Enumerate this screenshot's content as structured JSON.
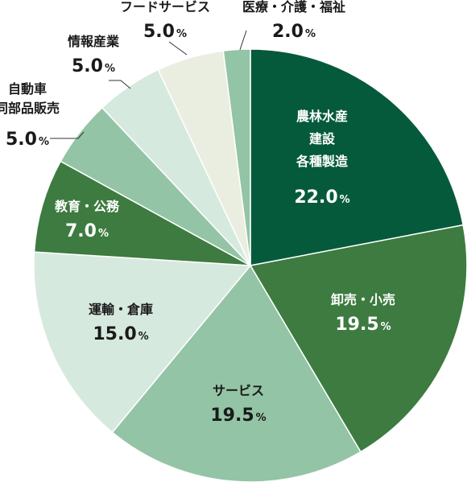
{
  "chart_data": {
    "type": "pie",
    "start_angle_deg": 0,
    "direction": "clockwise",
    "slices": [
      {
        "label_lines": [
          "農林水産",
          "建設",
          "各種製造"
        ],
        "value": 22.0,
        "value_text": "22.0",
        "unit": "%",
        "color": "#065a3c",
        "text_color": "#ffffff",
        "label_inside": true
      },
      {
        "label_lines": [
          "卸売・小売"
        ],
        "value": 19.5,
        "value_text": "19.5",
        "unit": "%",
        "color": "#3d7b40",
        "text_color": "#ffffff",
        "label_inside": true
      },
      {
        "label_lines": [
          "サービス"
        ],
        "value": 19.5,
        "value_text": "19.5",
        "unit": "%",
        "color": "#93c4a5",
        "text_color": "#1a1a1a",
        "label_inside": true
      },
      {
        "label_lines": [
          "運輸・倉庫"
        ],
        "value": 15.0,
        "value_text": "15.0",
        "unit": "%",
        "color": "#d6e9df",
        "text_color": "#1a1a1a",
        "label_inside": true
      },
      {
        "label_lines": [
          "教育・公務"
        ],
        "value": 7.0,
        "value_text": "7.0",
        "unit": "%",
        "color": "#3d7b40",
        "text_color": "#ffffff",
        "label_inside": true
      },
      {
        "label_lines": [
          "自動車",
          "同部品販売"
        ],
        "value": 5.0,
        "value_text": "5.0",
        "unit": "%",
        "color": "#93c4a5",
        "text_color": "#1a1a1a",
        "label_inside": false
      },
      {
        "label_lines": [
          "情報産業"
        ],
        "value": 5.0,
        "value_text": "5.0",
        "unit": "%",
        "color": "#d6e9df",
        "text_color": "#1a1a1a",
        "label_inside": false
      },
      {
        "label_lines": [
          "フードサービス"
        ],
        "value": 5.0,
        "value_text": "5.0",
        "unit": "%",
        "color": "#eaeee0",
        "text_color": "#1a1a1a",
        "label_inside": false
      },
      {
        "label_lines": [
          "医療・介護・福祉"
        ],
        "value": 2.0,
        "value_text": "2.0",
        "unit": "%",
        "color": "#93c4a5",
        "text_color": "#1a1a1a",
        "label_inside": false
      }
    ]
  }
}
